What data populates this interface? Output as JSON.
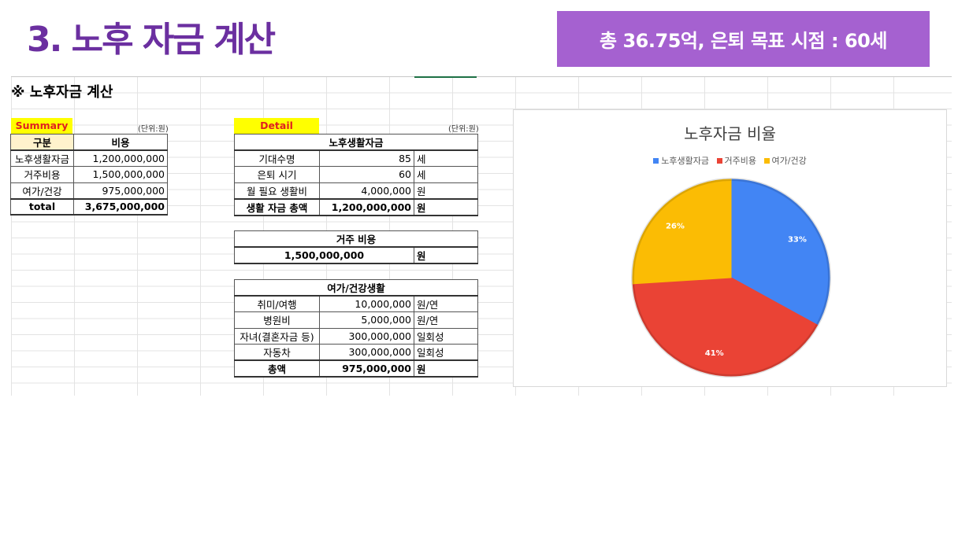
{
  "slide": {
    "title": "3. 노후 자금 계산",
    "goal_banner": "총 36.75억, 은퇴 목표 시점 : 60세"
  },
  "sheet": {
    "heading": "※ 노후자금 계산",
    "summary": {
      "label": "Summary",
      "unit": "(단위:원)",
      "headers": [
        "구분",
        "비용"
      ],
      "rows": [
        {
          "name": "노후생활자금",
          "value": "1,200,000,000"
        },
        {
          "name": "거주비용",
          "value": "1,500,000,000"
        },
        {
          "name": "여가/건강",
          "value": "975,000,000"
        }
      ],
      "total": {
        "name": "total",
        "value": "3,675,000,000"
      }
    },
    "detail": {
      "label": "Detail",
      "unit": "(단위:원)",
      "living": {
        "title": "노후생활자금",
        "rows": [
          {
            "name": "기대수명",
            "value": "85",
            "unit": "세"
          },
          {
            "name": "은퇴 시기",
            "value": "60",
            "unit": "세"
          },
          {
            "name": "월 필요 생활비",
            "value": "4,000,000",
            "unit": "원"
          }
        ],
        "total": {
          "name": "생활 자금 총액",
          "value": "1,200,000,000",
          "unit": "원"
        }
      },
      "housing": {
        "title": "거주 비용",
        "value": "1,500,000,000",
        "unit": "원"
      },
      "leisure": {
        "title": "여가/건강생활",
        "rows": [
          {
            "name": "취미/여행",
            "value": "10,000,000",
            "unit": "원/연"
          },
          {
            "name": "병원비",
            "value": "5,000,000",
            "unit": "원/연"
          },
          {
            "name": "자녀(결혼자금 등)",
            "value": "300,000,000",
            "unit": "일회성"
          },
          {
            "name": "자동차",
            "value": "300,000,000",
            "unit": "일회성"
          }
        ],
        "total": {
          "name": "총액",
          "value": "975,000,000",
          "unit": "원"
        }
      }
    }
  },
  "chart_data": {
    "type": "pie",
    "title": "노후자금 비율",
    "legend_position": "top",
    "categories": [
      "노후생활자금",
      "거주비용",
      "여가/건강"
    ],
    "values": [
      33,
      41,
      26
    ],
    "labels": [
      "33%",
      "41%",
      "26%"
    ],
    "colors": [
      "#4285f4",
      "#ea4335",
      "#fbbc04"
    ]
  }
}
